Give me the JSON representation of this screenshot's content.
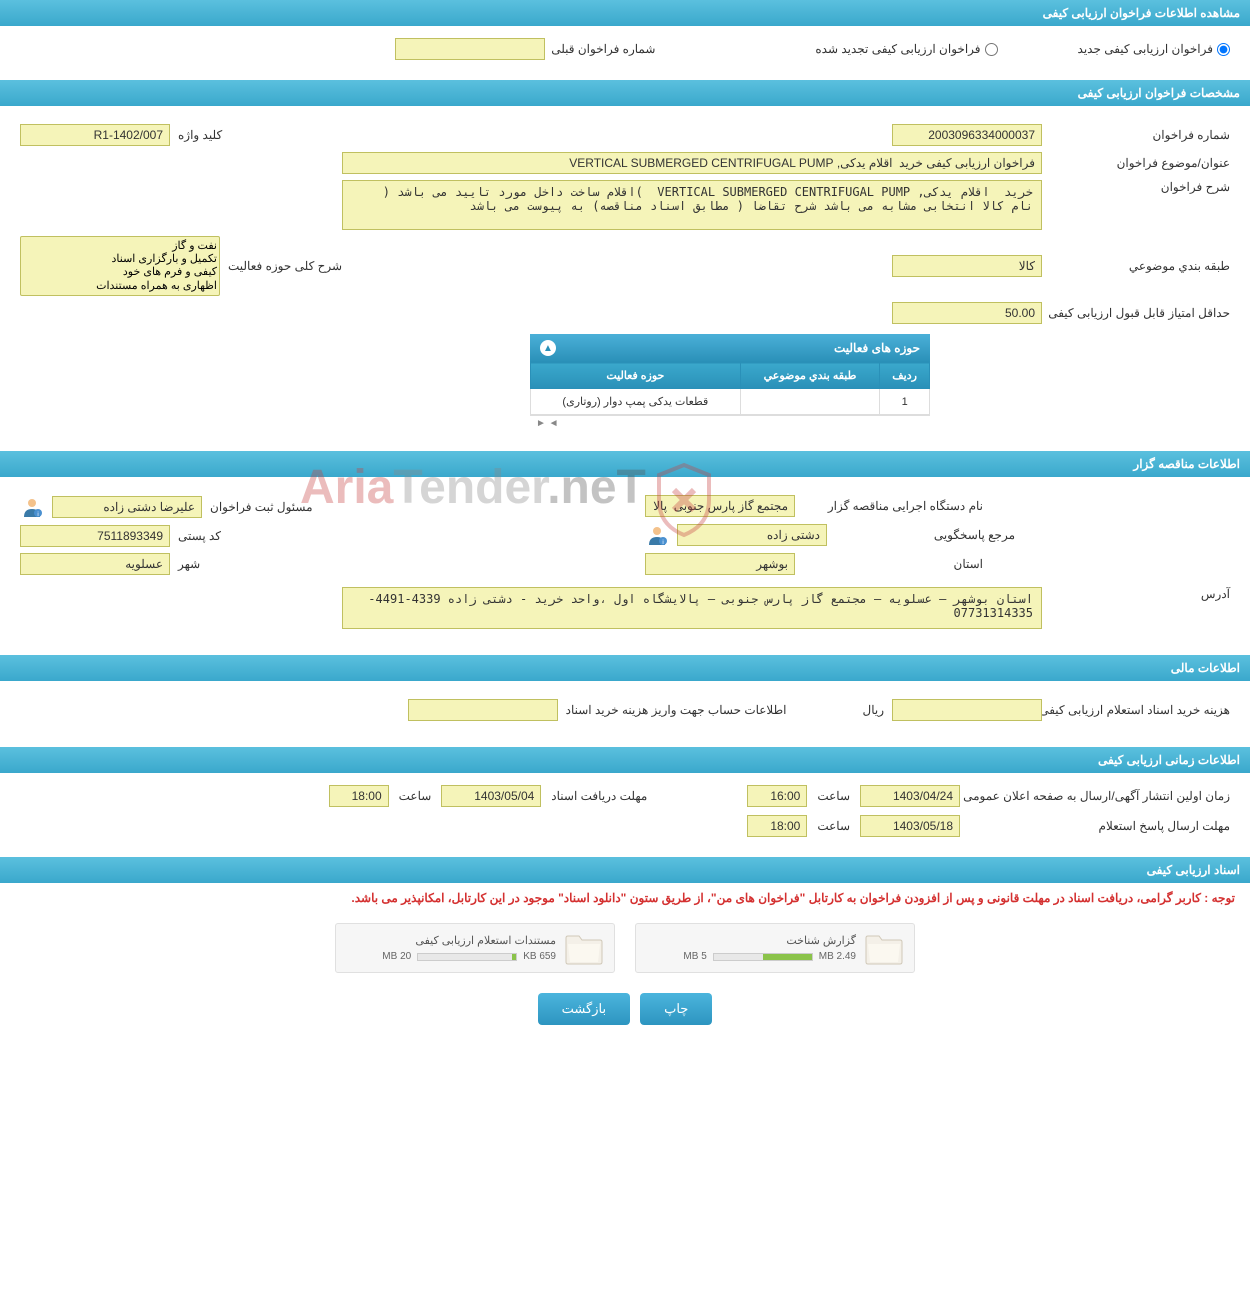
{
  "header": {
    "title": "مشاهده اطلاعات فراخوان ارزیابی کیفی"
  },
  "type_selection": {
    "new_label": "فراخوان ارزیابی کیفی جدید",
    "renewed_label": "فراخوان ارزیابی کیفی تجدید شده",
    "prev_number_label": "شماره فراخوان قبلی",
    "prev_number_value": ""
  },
  "spec": {
    "section_title": "مشخصات فراخوان ارزیابی کیفی",
    "call_number_label": "شماره فراخوان",
    "call_number": "2003096334000037",
    "keyword_label": "کلید واژه",
    "keyword": "R1-1402/007",
    "subject_label": "عنوان/موضوع فراخوان",
    "subject": "فراخوان ارزیابی کیفی خرید  اقلام یدکی, VERTICAL SUBMERGED CENTRIFUGAL PUMP",
    "desc_label": "شرح فراخوان",
    "desc": "خرید  اقلام یدکی, VERTICAL SUBMERGED CENTRIFUGAL PUMP  )اقلام ساخت داخل مورد تایید می باشد (       نام کالا انتخابی مشابه می باشد شرح تقاضا ( مطابق اسناد مناقصه) به پیوست می باشد",
    "category_label": "طبقه بندي موضوعي",
    "category": "کالا",
    "scope_label": "شرح کلی حوزه فعالیت",
    "scope_options": [
      "نفت و گاز",
      "تکمیل و بارگزاری اسناد",
      "کیفی و فرم های خود",
      "اظهاری به همراه مستندات"
    ],
    "min_score_label": "حداقل امتیاز قابل قبول ارزیابی کیفی",
    "min_score": "50.00"
  },
  "activities": {
    "title": "حوزه های فعالیت",
    "columns": [
      "ردیف",
      "طبقه بندي موضوعي",
      "حوزه فعالیت"
    ],
    "rows": [
      [
        "1",
        "",
        "قطعات یدکی پمپ دوار (روتاری)"
      ]
    ],
    "scroll_hint": "◄ ►"
  },
  "tenderer": {
    "section_title": "اطلاعات مناقصه گزار",
    "org_label": "نام دستگاه اجرایی مناقصه گزار",
    "org": "مجتمع گاز پارس جنوبی  پالا",
    "registrar_label": "مسئول ثبت فراخوان",
    "registrar": "علیرضا دشتی زاده",
    "contact_label": "مرجع پاسخگویی",
    "contact": "دشتی زاده",
    "postal_label": "کد پستی",
    "postal": "7511893349",
    "province_label": "استان",
    "province": "بوشهر",
    "city_label": "شهر",
    "city": "عسلویه",
    "address_label": "آدرس",
    "address": "استان بوشهر – عسلویه – مجتمع گاز پارس جنوبی – پالایشگاه اول ،واحد خرید - دشتی زاده 4339-4491-07731314335"
  },
  "financial": {
    "section_title": "اطلاعات مالی",
    "buy_cost_label": "هزینه خرید اسناد استعلام ارزیابی کیفی",
    "buy_cost": "",
    "currency": "ریال",
    "account_label": "اطلاعات حساب جهت واریز هزینه خرید اسناد",
    "account": ""
  },
  "timing": {
    "section_title": "اطلاعات زمانی ارزیابی کیفی",
    "publish_label": "زمان اولین انتشار آگهی/ارسال به صفحه اعلان عمومی",
    "publish_date": "1403/04/24",
    "publish_time": "16:00",
    "receive_label": "مهلت دریافت اسناد",
    "receive_date": "1403/05/04",
    "receive_time": "18:00",
    "reply_label": "مهلت ارسال پاسخ استعلام",
    "reply_date": "1403/05/18",
    "reply_time": "18:00",
    "time_label": "ساعت"
  },
  "docs": {
    "section_title": "اسناد ارزیابی کیفی",
    "notice": "توجه : کاربر گرامی، دریافت اسناد در مهلت قانونی و پس از افزودن فراخوان به کارتابل \"فراخوان های من\"، از طریق ستون \"دانلود اسناد\" موجود در این کارتابل، امکانپذیر می باشد.",
    "files": [
      {
        "name": "گزارش شناخت",
        "current": "2.49 MB",
        "max": "5 MB",
        "pct": 50
      },
      {
        "name": "مستندات استعلام ارزیابی کیفی",
        "current": "659 KB",
        "max": "20 MB",
        "pct": 4
      }
    ]
  },
  "buttons": {
    "print": "چاپ",
    "back": "بازگشت"
  },
  "watermark": {
    "text1": "Aria",
    "text2": "Tender",
    "text3": ".neT"
  }
}
